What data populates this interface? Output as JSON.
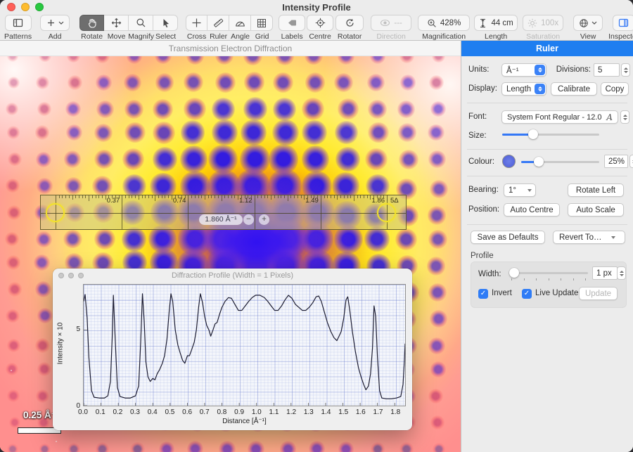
{
  "window": {
    "title": "Intensity Profile"
  },
  "toolbar": {
    "patterns": "Patterns",
    "add": "Add",
    "rotate": "Rotate",
    "move": "Move",
    "magnify": "Magnify",
    "select": "Select",
    "cross": "Cross",
    "ruler": "Ruler",
    "angle": "Angle",
    "grid": "Grid",
    "labels": "Labels",
    "centre": "Centre",
    "rotator": "Rotator",
    "direction": "Direction",
    "direction_value": "---",
    "magnification": "Magnification",
    "magnification_value": "428%",
    "length": "Length",
    "length_value": "44 cm",
    "saturation": "Saturation",
    "saturation_value": "100x",
    "view": "View",
    "inspector": "Inspector"
  },
  "canvas": {
    "header": "Transmission Electron Diffraction",
    "scale_bar_label": "0.25 Å⁻¹"
  },
  "ruler_overlay": {
    "division_labels": [
      "0.37",
      "0.74",
      "1.12",
      "1.49",
      "1.86"
    ],
    "end_label": "5Δ",
    "measurement": "1.860 Å⁻¹",
    "minus_label": "−",
    "plus_label": "+"
  },
  "inspector": {
    "title": "Ruler",
    "units_label": "Units:",
    "units_value": "Å⁻¹",
    "divisions_label": "Divisions:",
    "divisions_value": "5",
    "display_label": "Display:",
    "display_value": "Length",
    "calibrate_button": "Calibrate",
    "copy_button": "Copy",
    "font_label": "Font:",
    "font_value": "System Font Regular - 12.0",
    "font_glyph": "A",
    "size_label": "Size:",
    "colour_label": "Colour:",
    "colour_value": "25%",
    "bearing_label": "Bearing:",
    "bearing_value": "1°",
    "rotate_left_button": "Rotate Left",
    "position_label": "Position:",
    "auto_centre_button": "Auto Centre",
    "auto_scale_button": "Auto Scale",
    "save_defaults_button": "Save as Defaults",
    "revert_button": "Revert To…",
    "profile_section": "Profile",
    "width_label": "Width:",
    "width_value": "1 px",
    "invert_label": "Invert",
    "live_update_label": "Live Update",
    "update_button": "Update",
    "accent_color": "#1f7ef0"
  },
  "profile_window": {
    "title": "Diffraction Profile (Width = 1 Pixels)",
    "chart_data": {
      "type": "line",
      "title": "Diffraction Profile (Width = 1 Pixels)",
      "xlabel": "Distance [Å⁻¹]",
      "ylabel": "Intensity × 10",
      "xlim": [
        0,
        1.86
      ],
      "ylim": [
        0,
        8
      ],
      "xticks": [
        0.0,
        0.1,
        0.2,
        0.3,
        0.4,
        0.5,
        0.6,
        0.7,
        0.8,
        0.9,
        1.0,
        1.1,
        1.2,
        1.3,
        1.4,
        1.5,
        1.6,
        1.7,
        1.8
      ],
      "yticks": [
        0,
        5
      ],
      "grid": true,
      "line_color": "#1a1a30",
      "series": [
        {
          "name": "intensity",
          "points": [
            [
              0,
              6.9
            ],
            [
              0.008,
              7.35
            ],
            [
              0.02,
              5.8
            ],
            [
              0.03,
              3.2
            ],
            [
              0.045,
              1.0
            ],
            [
              0.06,
              0.55
            ],
            [
              0.09,
              0.5
            ],
            [
              0.12,
              0.5
            ],
            [
              0.14,
              0.65
            ],
            [
              0.155,
              1.6
            ],
            [
              0.165,
              4.5
            ],
            [
              0.172,
              7.3
            ],
            [
              0.182,
              4.5
            ],
            [
              0.195,
              1.2
            ],
            [
              0.21,
              0.6
            ],
            [
              0.24,
              0.5
            ],
            [
              0.27,
              0.5
            ],
            [
              0.3,
              0.65
            ],
            [
              0.318,
              1.3
            ],
            [
              0.33,
              4.2
            ],
            [
              0.34,
              7.4
            ],
            [
              0.35,
              5.6
            ],
            [
              0.36,
              2.9
            ],
            [
              0.372,
              1.9
            ],
            [
              0.385,
              1.6
            ],
            [
              0.4,
              1.8
            ],
            [
              0.412,
              1.7
            ],
            [
              0.425,
              2.1
            ],
            [
              0.44,
              2.4
            ],
            [
              0.455,
              2.8
            ],
            [
              0.468,
              3.3
            ],
            [
              0.482,
              4.4
            ],
            [
              0.495,
              6.3
            ],
            [
              0.505,
              7.4
            ],
            [
              0.515,
              6.9
            ],
            [
              0.53,
              5.0
            ],
            [
              0.545,
              4.0
            ],
            [
              0.558,
              3.5
            ],
            [
              0.572,
              3.0
            ],
            [
              0.585,
              2.8
            ],
            [
              0.6,
              3.3
            ],
            [
              0.612,
              3.3
            ],
            [
              0.625,
              3.7
            ],
            [
              0.64,
              4.2
            ],
            [
              0.652,
              5.0
            ],
            [
              0.665,
              6.5
            ],
            [
              0.675,
              7.4
            ],
            [
              0.688,
              6.8
            ],
            [
              0.7,
              5.9
            ],
            [
              0.712,
              5.3
            ],
            [
              0.725,
              5.0
            ],
            [
              0.735,
              4.6
            ],
            [
              0.748,
              5.0
            ],
            [
              0.76,
              5.4
            ],
            [
              0.772,
              5.5
            ],
            [
              0.785,
              6.0
            ],
            [
              0.8,
              6.5
            ],
            [
              0.818,
              6.9
            ],
            [
              0.838,
              7.15
            ],
            [
              0.855,
              7.1
            ],
            [
              0.875,
              6.7
            ],
            [
              0.895,
              6.3
            ],
            [
              0.915,
              6.3
            ],
            [
              0.935,
              6.6
            ],
            [
              0.955,
              6.9
            ],
            [
              0.975,
              7.15
            ],
            [
              0.995,
              7.3
            ],
            [
              1.02,
              7.3
            ],
            [
              1.045,
              7.15
            ],
            [
              1.065,
              6.9
            ],
            [
              1.085,
              6.6
            ],
            [
              1.105,
              6.3
            ],
            [
              1.125,
              6.3
            ],
            [
              1.145,
              6.6
            ],
            [
              1.165,
              7.0
            ],
            [
              1.185,
              7.3
            ],
            [
              1.205,
              7.1
            ],
            [
              1.225,
              6.7
            ],
            [
              1.245,
              6.5
            ],
            [
              1.265,
              6.3
            ],
            [
              1.285,
              6.3
            ],
            [
              1.305,
              6.5
            ],
            [
              1.325,
              6.8
            ],
            [
              1.345,
              7.2
            ],
            [
              1.36,
              7.25
            ],
            [
              1.375,
              6.9
            ],
            [
              1.39,
              6.3
            ],
            [
              1.41,
              5.5
            ],
            [
              1.43,
              4.9
            ],
            [
              1.448,
              4.5
            ],
            [
              1.465,
              4.3
            ],
            [
              1.478,
              4.6
            ],
            [
              1.49,
              4.9
            ],
            [
              1.505,
              5.8
            ],
            [
              1.518,
              7.0
            ],
            [
              1.528,
              7.2
            ],
            [
              1.54,
              6.3
            ],
            [
              1.555,
              4.9
            ],
            [
              1.572,
              3.6
            ],
            [
              1.59,
              2.5
            ],
            [
              1.605,
              1.9
            ],
            [
              1.62,
              1.4
            ],
            [
              1.633,
              1.05
            ],
            [
              1.648,
              1.3
            ],
            [
              1.66,
              2.1
            ],
            [
              1.671,
              3.8
            ],
            [
              1.68,
              6.6
            ],
            [
              1.69,
              5.9
            ],
            [
              1.7,
              3.2
            ],
            [
              1.712,
              1.0
            ],
            [
              1.725,
              0.5
            ],
            [
              1.75,
              0.45
            ],
            [
              1.78,
              0.45
            ],
            [
              1.81,
              0.5
            ],
            [
              1.835,
              0.6
            ],
            [
              1.848,
              1.4
            ],
            [
              1.856,
              3.0
            ],
            [
              1.86,
              4.1
            ]
          ]
        }
      ]
    }
  }
}
